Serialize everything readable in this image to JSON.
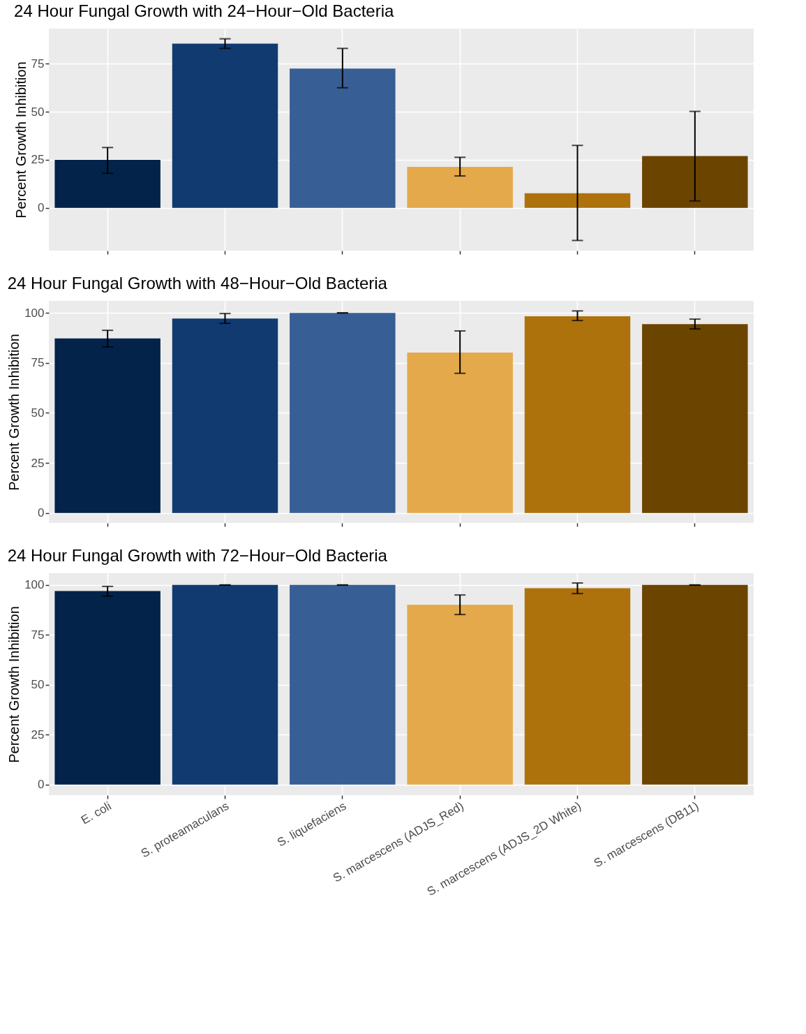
{
  "chart_data": [
    {
      "type": "bar",
      "title": "24 Hour Fungal Growth with 24−Hour−Old Bacteria",
      "ylabel": "Percent Growth Inhibition",
      "categories": [
        null,
        null,
        null,
        null,
        null,
        null
      ],
      "values": [
        25,
        85.5,
        72.5,
        21.3,
        7.6,
        27
      ],
      "colors": [
        "#03234a",
        "#113a70",
        "#375f95",
        "#e3a94a",
        "#ae720c",
        "#6b4400"
      ],
      "errors": [
        [
          18,
          31.4
        ],
        [
          83,
          88
        ],
        [
          62.5,
          83
        ],
        [
          16.6,
          26.3
        ],
        [
          -17,
          32.5
        ],
        [
          3.6,
          50.2
        ]
      ],
      "ylim": [
        -22.3,
        93.3
      ],
      "yticks": [
        0,
        25,
        50,
        75
      ],
      "grid": true,
      "tick_labels": "y"
    },
    {
      "type": "bar",
      "title": "24 Hour Fungal Growth with 48−Hour−Old Bacteria",
      "ylabel": "Percent Growth Inhibition",
      "categories": [
        null,
        null,
        null,
        null,
        null,
        null
      ],
      "values": [
        87.2,
        97.2,
        100,
        80.2,
        98.3,
        94.4
      ],
      "colors": [
        "#03234a",
        "#113a70",
        "#375f95",
        "#e3a94a",
        "#ae720c",
        "#6b4400"
      ],
      "errors": [
        [
          83,
          91.3
        ],
        [
          94.8,
          99.7
        ],
        [
          100,
          100
        ],
        [
          69.8,
          91
        ],
        [
          96.2,
          101
        ],
        [
          92,
          96.9
        ]
      ],
      "ylim": [
        -5,
        106
      ],
      "yticks": [
        0,
        25,
        50,
        75,
        100
      ],
      "grid": true,
      "tick_labels": "y"
    },
    {
      "type": "bar",
      "title": "24 Hour Fungal Growth with 72−Hour−Old Bacteria",
      "ylabel": "Percent Growth Inhibition",
      "categories": [
        "E. coli",
        "S. proteamaculans",
        "S. liquefaciens",
        "S. marcescens (ADJS_Red)",
        "S. marcescens (ADJS_2D White)",
        "S. marcescens (DB11)"
      ],
      "values": [
        97,
        100,
        100,
        90.1,
        98.4,
        100
      ],
      "colors": [
        "#03234a",
        "#113a70",
        "#375f95",
        "#e3a94a",
        "#ae720c",
        "#6b4400"
      ],
      "errors": [
        [
          94.4,
          99.3
        ],
        [
          100,
          100
        ],
        [
          100,
          100
        ],
        [
          85.2,
          95
        ],
        [
          95.7,
          101
        ],
        [
          100,
          100
        ]
      ],
      "ylim": [
        -5.3,
        105.9
      ],
      "yticks": [
        0,
        25,
        50,
        75,
        100
      ],
      "grid": true
    }
  ]
}
